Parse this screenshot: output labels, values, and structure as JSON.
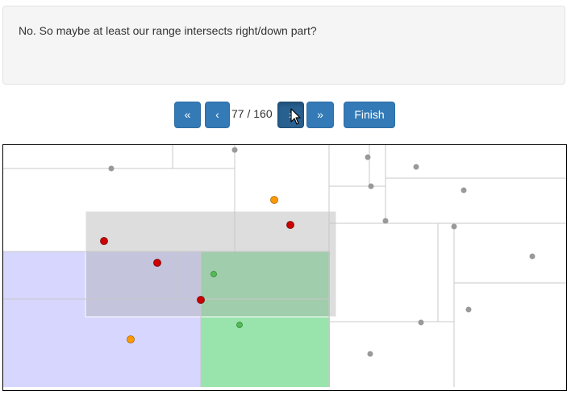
{
  "message": {
    "text": "No. So maybe at least our range intersects right/down part?"
  },
  "navigation": {
    "first_label": "«",
    "prev_label": "‹",
    "page_counter": "77 / 160",
    "next_label": "›",
    "last_label": "»",
    "finish_label": "Finish",
    "current_step": 77,
    "total_steps": 160
  },
  "visualization": {
    "point_kinds": [
      "neutral-point",
      "query-range-point",
      "candidate-point",
      "visited-point"
    ],
    "colors": {
      "neutral_point": "#999999",
      "query_range_point": "#cc0000",
      "candidate_point": "#ff9900",
      "visited_point": "#55bb55",
      "query_region": "#cccccc",
      "lower_left_region": "#ccccff",
      "lower_right_region": "#80dd99",
      "split_line": "#c8c8c8",
      "accent": "#337ab7"
    }
  }
}
